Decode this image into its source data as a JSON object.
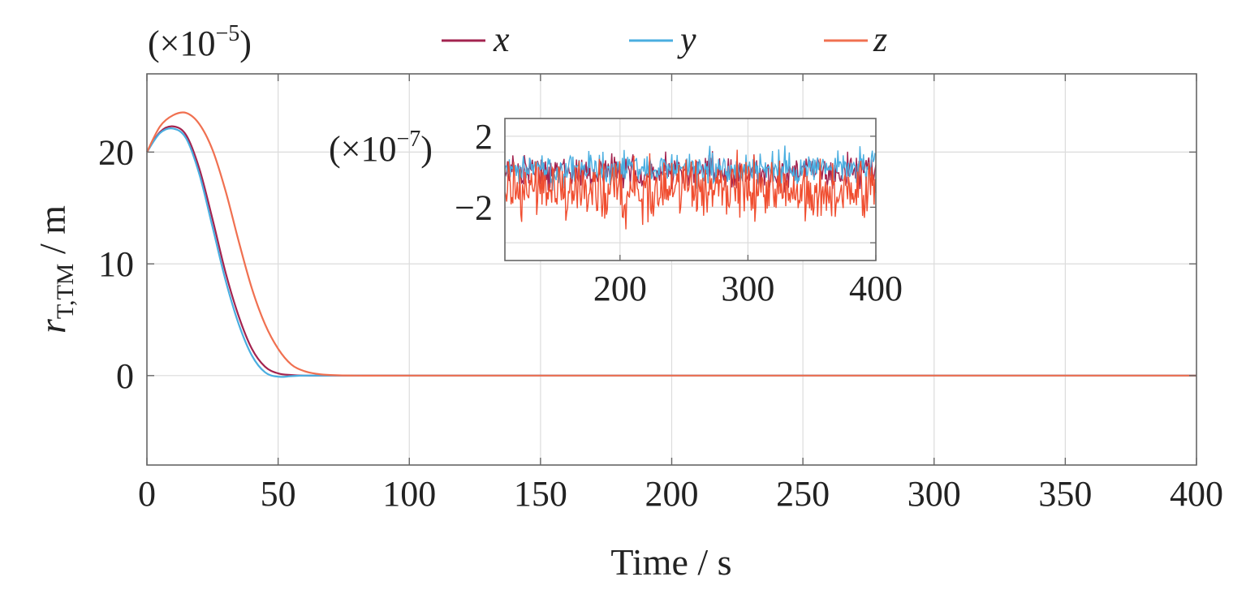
{
  "chart_data": [
    {
      "type": "line",
      "xlabel": "Time / s",
      "ylabel": "r",
      "ylabel_subscript": "T,TM",
      "ylabel_unit": " / m",
      "scale_label_prefix": "(×10",
      "scale_label_exp": "−5",
      "scale_label_suffix": ")",
      "xlim": [
        0,
        400
      ],
      "ylim": [
        -8,
        27
      ],
      "xticks": [
        0,
        50,
        100,
        150,
        200,
        250,
        300,
        350,
        400
      ],
      "xtick_labels": [
        "0",
        "50",
        "100",
        "150",
        "200",
        "250",
        "300",
        "350",
        "400"
      ],
      "yticks": [
        0,
        10,
        20
      ],
      "ytick_labels": [
        "0",
        "10",
        "20"
      ],
      "grid": true,
      "legend_position": "top-center",
      "series": [
        {
          "name": "x",
          "color": "#a3234f",
          "x": [
            0,
            5,
            10,
            15,
            20,
            25,
            30,
            35,
            40,
            45,
            50,
            55,
            60,
            70,
            80,
            100,
            150,
            200,
            250,
            300,
            350,
            400
          ],
          "y": [
            20,
            21.8,
            22.3,
            21.5,
            18.5,
            14.0,
            9.2,
            5.3,
            2.4,
            0.8,
            0.2,
            0.05,
            0.0,
            0,
            0,
            0,
            0,
            0,
            0,
            0,
            0,
            0
          ]
        },
        {
          "name": "y",
          "color": "#4aaee0",
          "x": [
            0,
            5,
            10,
            15,
            20,
            25,
            30,
            35,
            40,
            45,
            50,
            55,
            60,
            70,
            80,
            100,
            150,
            200,
            250,
            300,
            350,
            400
          ],
          "y": [
            20,
            21.7,
            22.1,
            21.2,
            18.0,
            13.3,
            8.5,
            4.6,
            1.8,
            0.3,
            -0.1,
            -0.05,
            0.0,
            0,
            0,
            0,
            0,
            0,
            0,
            0,
            0,
            0
          ]
        },
        {
          "name": "z",
          "color": "#f07050",
          "x": [
            0,
            5,
            10,
            15,
            20,
            25,
            30,
            35,
            40,
            45,
            50,
            55,
            60,
            65,
            70,
            80,
            100,
            150,
            200,
            250,
            300,
            350,
            400
          ],
          "y": [
            20,
            22.3,
            23.3,
            23.5,
            22.5,
            20.2,
            16.5,
            12.0,
            7.8,
            4.6,
            2.4,
            1.0,
            0.4,
            0.15,
            0.05,
            0,
            0,
            0,
            0,
            0,
            0,
            0,
            0
          ]
        }
      ]
    },
    {
      "type": "line",
      "inset": true,
      "scale_label_prefix": "(×10",
      "scale_label_exp": "−7",
      "scale_label_suffix": ")",
      "xlim": [
        110,
        400
      ],
      "ylim": [
        -5,
        3
      ],
      "xticks": [
        200,
        300,
        400
      ],
      "xtick_labels": [
        "200",
        "300",
        "400"
      ],
      "yticks": [
        2,
        -2
      ],
      "ytick_labels": [
        "2",
        "−2"
      ],
      "grid": true,
      "series": [
        {
          "name": "x",
          "color": "#a3234f",
          "noise_mean": 0.0,
          "noise_amplitude": 1.0
        },
        {
          "name": "y",
          "color": "#4aaee0",
          "noise_mean": 0.2,
          "noise_amplitude": 1.0
        },
        {
          "name": "z",
          "color": "#f04e30",
          "noise_mean": -1.0,
          "noise_amplitude": 1.8
        }
      ]
    }
  ]
}
